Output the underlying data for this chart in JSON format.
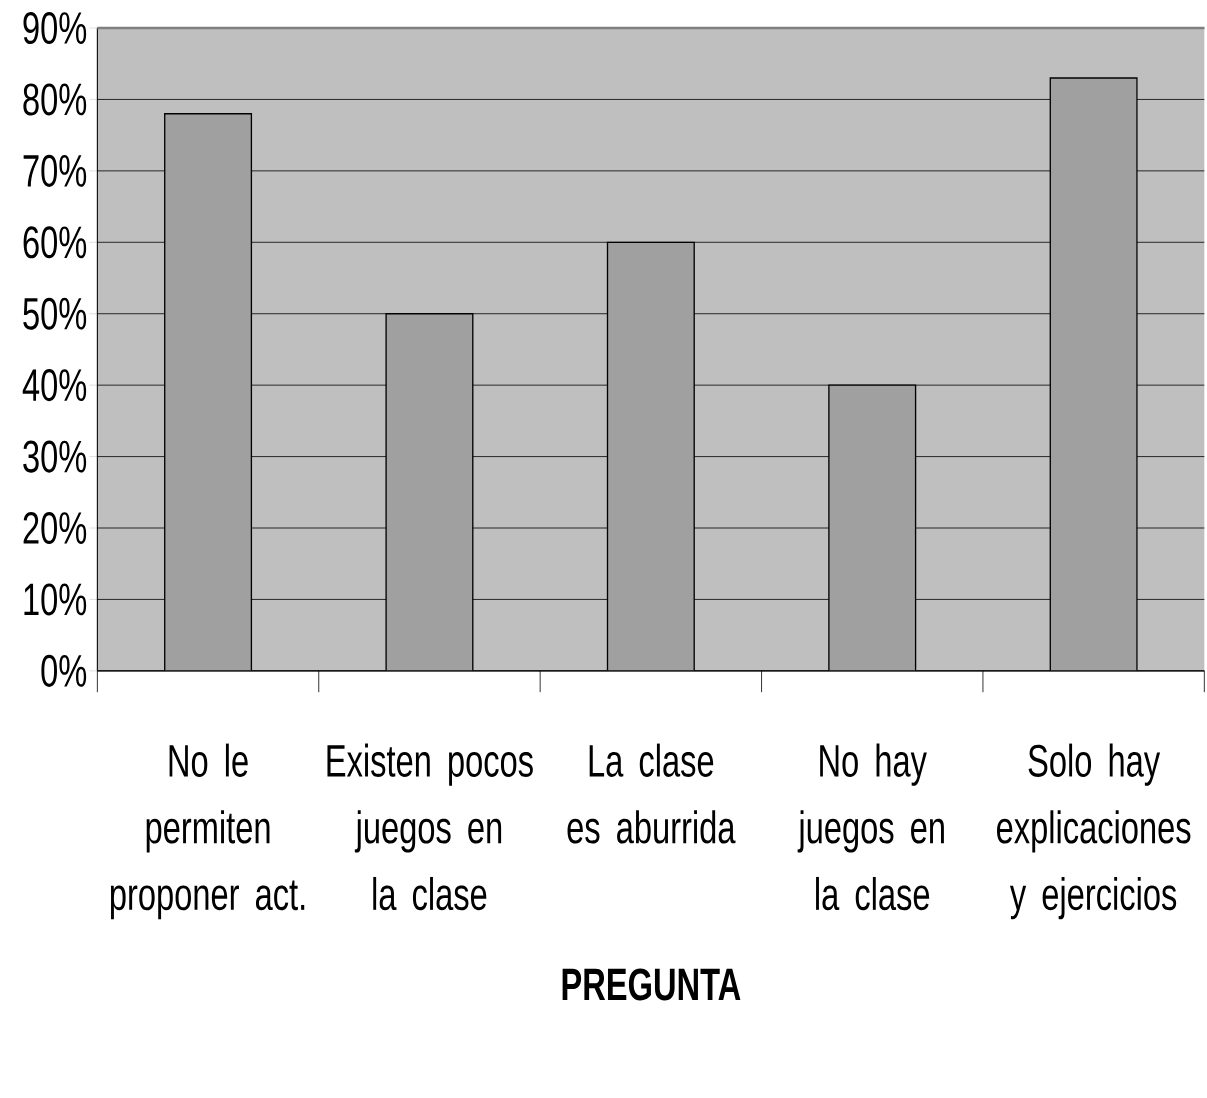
{
  "chart_data": {
    "type": "bar",
    "xlabel": "PREGUNTA",
    "categories": [
      "No le permiten proponer act.",
      "Existen pocos juegos en la clase",
      "La clase es aburrida",
      "No hay juegos en la clase",
      "Solo hay explicaciones y ejercicios"
    ],
    "values": [
      78,
      50,
      60,
      40,
      83
    ],
    "color": "#a0a0a0",
    "ylim": [
      0,
      90
    ],
    "yticks": [
      {
        "value": 0,
        "label": "0%"
      },
      {
        "value": 10,
        "label": "10%"
      },
      {
        "value": 20,
        "label": "20%"
      },
      {
        "value": 30,
        "label": "30%"
      },
      {
        "value": 40,
        "label": "40%"
      },
      {
        "value": 50,
        "label": "50%"
      },
      {
        "value": 60,
        "label": "60%"
      },
      {
        "value": 70,
        "label": "70%"
      },
      {
        "value": 80,
        "label": "80%"
      },
      {
        "value": 90,
        "label": "90%"
      }
    ],
    "grid": "y"
  }
}
